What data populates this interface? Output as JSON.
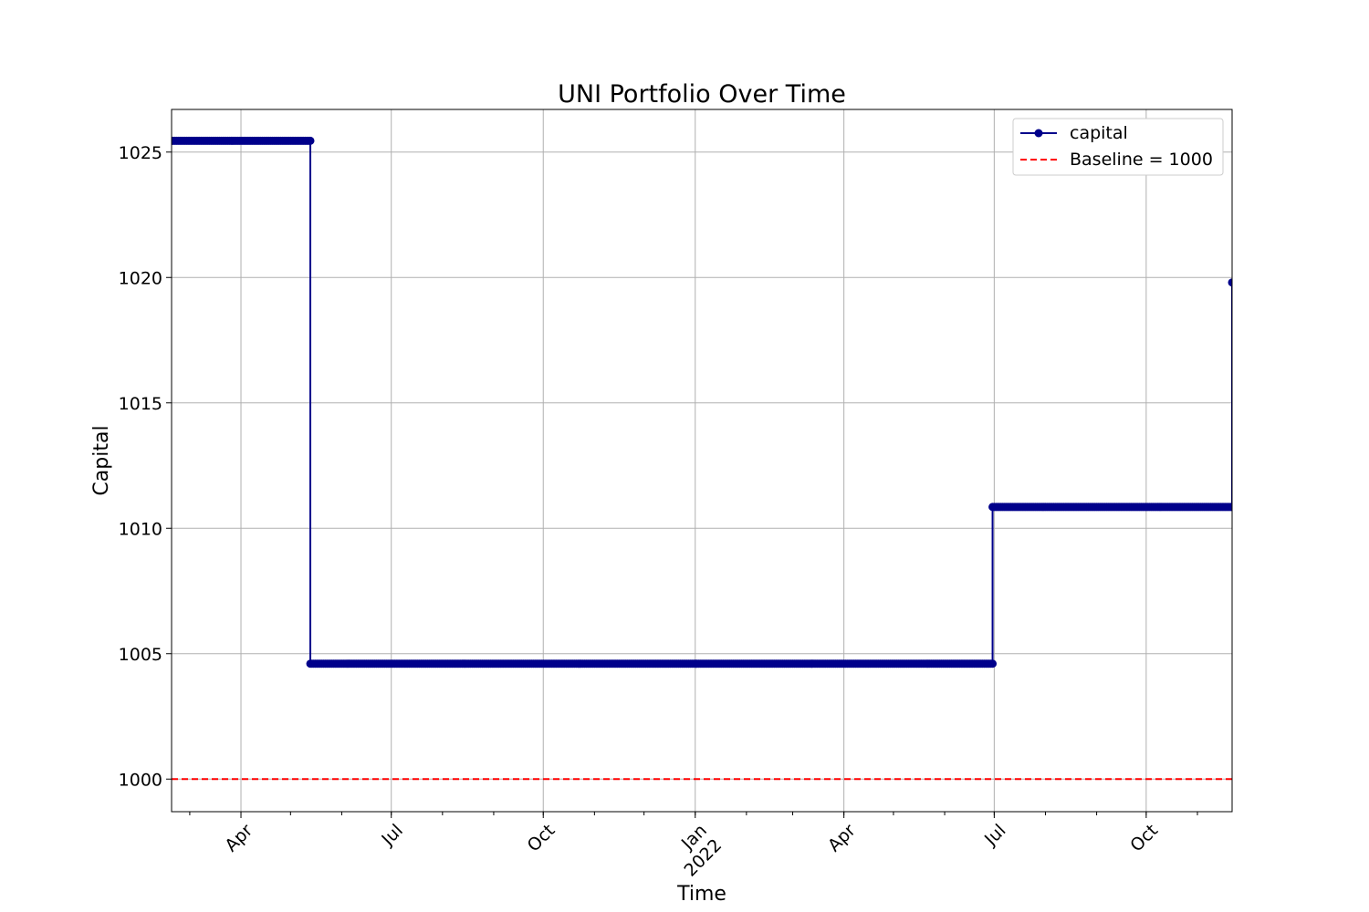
{
  "chart_data": {
    "type": "line",
    "title": "UNI Portfolio Over Time",
    "xlabel": "Time",
    "ylabel": "Capital",
    "xlim": [
      "2021-02-18",
      "2022-11-22"
    ],
    "ylim": [
      998.7,
      1026.7
    ],
    "grid": true,
    "legend_position": "top-right",
    "x_ticks": [
      {
        "date": "2021-04-01",
        "label": "Apr",
        "sublabel": ""
      },
      {
        "date": "2021-07-01",
        "label": "Jul",
        "sublabel": ""
      },
      {
        "date": "2021-10-01",
        "label": "Oct",
        "sublabel": ""
      },
      {
        "date": "2022-01-01",
        "label": "Jan",
        "sublabel": "2022"
      },
      {
        "date": "2022-04-01",
        "label": "Apr",
        "sublabel": ""
      },
      {
        "date": "2022-07-01",
        "label": "Jul",
        "sublabel": ""
      },
      {
        "date": "2022-10-01",
        "label": "Oct",
        "sublabel": ""
      }
    ],
    "y_ticks": [
      1000,
      1005,
      1010,
      1015,
      1020,
      1025
    ],
    "series": [
      {
        "name": "capital",
        "color": "#00008b",
        "style": "solid-with-markers",
        "segments": [
          {
            "start": "2021-02-18",
            "end": "2021-05-13",
            "value": 1025.45
          },
          {
            "start": "2021-05-13",
            "end": "2022-06-30",
            "value": 1004.6
          },
          {
            "start": "2022-06-30",
            "end": "2022-11-22",
            "value": 1010.85
          }
        ],
        "final_point": {
          "date": "2022-11-22",
          "value": 1019.8
        }
      },
      {
        "name": "Baseline = 1000",
        "color": "#ff0000",
        "style": "dashed",
        "value": 1000
      }
    ]
  }
}
